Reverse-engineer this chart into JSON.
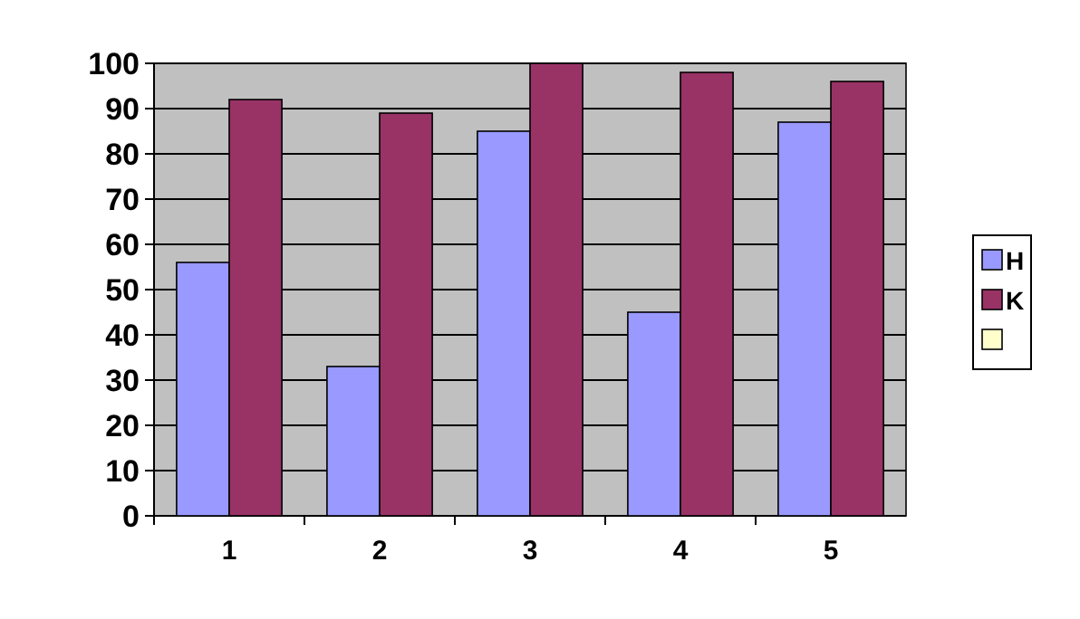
{
  "chart_data": {
    "type": "bar",
    "categories": [
      "1",
      "2",
      "3",
      "4",
      "5"
    ],
    "series": [
      {
        "name": "H",
        "color": "#9999ff",
        "values": [
          56,
          33,
          85,
          45,
          87
        ]
      },
      {
        "name": "K",
        "color": "#993366",
        "values": [
          92,
          89,
          100,
          98,
          96
        ]
      },
      {
        "color": "#ffffcc",
        "values": [
          null,
          null,
          null,
          null,
          null
        ]
      }
    ],
    "ylim": [
      0,
      100
    ],
    "yticks": [
      0,
      10,
      20,
      30,
      40,
      50,
      60,
      70,
      80,
      90,
      100
    ],
    "grid": "y",
    "legend": "right"
  }
}
